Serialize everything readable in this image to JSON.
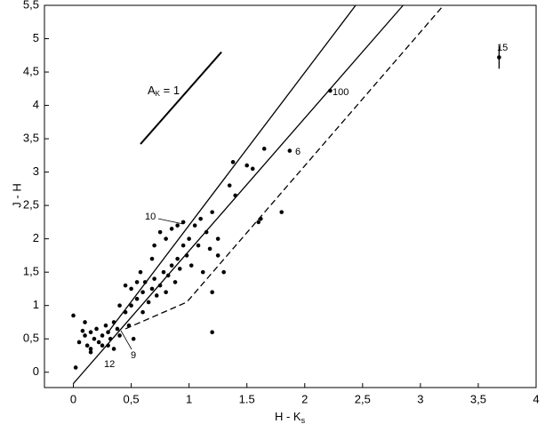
{
  "chart_data": {
    "type": "scatter",
    "x_label": {
      "main": "H - K",
      "sub": "s"
    },
    "y_label": "J - H",
    "xlim": [
      -0.25,
      4
    ],
    "ylim": [
      -0.23,
      5.5
    ],
    "xticks": [
      0,
      {
        "value": 0.5,
        "label": "0,5"
      },
      1,
      {
        "value": 1.5,
        "label": "1.5"
      },
      2,
      {
        "value": 2.5,
        "label": "2,5"
      },
      3,
      {
        "value": 3.5,
        "label": "3,5"
      },
      4
    ],
    "yticks": [
      0,
      {
        "value": 0.5,
        "label": "0,5"
      },
      1,
      {
        "value": 1.5,
        "label": "1,5"
      },
      2,
      {
        "value": 2.5,
        "label": "2,5"
      },
      3,
      {
        "value": 3.5,
        "label": "3,5"
      },
      4,
      {
        "value": 4.5,
        "label": "4,5"
      },
      5,
      {
        "value": 5.5,
        "label": "5,5"
      }
    ],
    "color": "#000000",
    "x": [
      0.05,
      0.1,
      0.12,
      0.15,
      0.18,
      0.2,
      0.22,
      0.25,
      0.28,
      0.3,
      0.32,
      0.35,
      0.38,
      0.4,
      0.25,
      0.15,
      0.08,
      0.0,
      0.02,
      0.1,
      0.45,
      0.5,
      0.55,
      0.6,
      0.62,
      0.65,
      0.68,
      0.7,
      0.72,
      0.75,
      0.78,
      0.8,
      0.82,
      0.85,
      0.88,
      0.9,
      0.92,
      0.95,
      0.98,
      1.0,
      1.02,
      1.05,
      1.08,
      1.1,
      1.12,
      1.15,
      1.18,
      1.2,
      0.7,
      0.75,
      0.8,
      0.85,
      0.9,
      0.95,
      0.68,
      0.55,
      0.5,
      0.45,
      0.58,
      0.6,
      0.48,
      0.52,
      0.4,
      1.25,
      1.3,
      1.2,
      1.25,
      1.35,
      1.38,
      1.5,
      1.55,
      1.65,
      1.4,
      1.8,
      1.6,
      1.62,
      1.2,
      1.87,
      2.22,
      0.15,
      0.3,
      0.35
    ],
    "values": [
      0.45,
      0.55,
      0.4,
      0.6,
      0.5,
      0.65,
      0.45,
      0.55,
      0.7,
      0.6,
      0.5,
      0.75,
      0.65,
      0.55,
      0.4,
      0.35,
      0.62,
      0.85,
      0.07,
      0.75,
      0.9,
      1.0,
      1.1,
      1.2,
      1.35,
      1.05,
      1.25,
      1.4,
      1.15,
      1.3,
      1.5,
      1.2,
      1.45,
      1.6,
      1.35,
      1.7,
      1.55,
      1.9,
      1.75,
      2.0,
      1.6,
      2.2,
      1.9,
      2.3,
      1.5,
      2.1,
      1.85,
      2.4,
      1.9,
      2.1,
      2.0,
      2.15,
      2.2,
      2.25,
      1.7,
      1.35,
      1.25,
      1.3,
      1.5,
      0.9,
      0.7,
      0.5,
      1.0,
      1.75,
      1.5,
      1.2,
      2.0,
      2.8,
      3.15,
      3.1,
      3.05,
      3.35,
      2.65,
      2.4,
      2.25,
      2.3,
      0.6,
      3.32,
      4.22,
      0.3,
      0.4,
      0.35
    ],
    "error_point": {
      "x": 3.68,
      "y": 4.72,
      "yerr": 0.17
    },
    "lines": [
      {
        "style": "solid",
        "x": [
          0,
          2.85
        ],
        "y": [
          -0.17,
          5.5
        ]
      },
      {
        "style": "solid",
        "x": [
          0.3,
          2.44
        ],
        "y": [
          0.6,
          5.5
        ]
      },
      {
        "style": "dashed",
        "x": [
          0.45,
          0.98,
          3.2
        ],
        "y": [
          0.65,
          1.05,
          5.5
        ]
      },
      {
        "style": "solid",
        "x": [
          0.58,
          1.28
        ],
        "y": [
          3.42,
          4.8
        ]
      }
    ],
    "reddening_label": {
      "main": "A",
      "sub": "K",
      "rest": " = 1"
    },
    "annotations": [
      "10",
      "9",
      "12",
      "100",
      "6",
      "15"
    ]
  }
}
